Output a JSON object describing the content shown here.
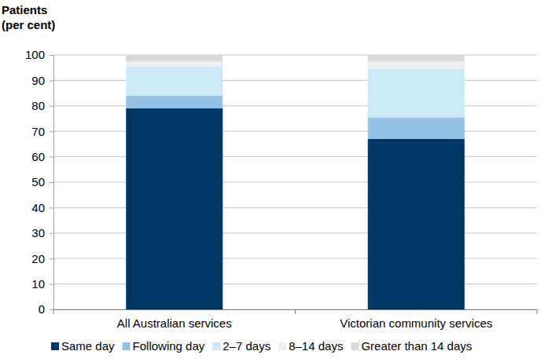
{
  "chart_data": {
    "type": "bar",
    "stacked": true,
    "grid": true,
    "legend": "bottom",
    "y_label": "Patients\n(per cent)",
    "categories": [
      "All Australian services",
      "Victorian community services"
    ],
    "series": [
      {
        "name": "Same day",
        "color": "#003865",
        "values": [
          79,
          67
        ]
      },
      {
        "name": "Following day",
        "color": "#95c3e6",
        "values": [
          5,
          8.5
        ]
      },
      {
        "name": "2–7 days",
        "color": "#cce9f9",
        "values": [
          11.5,
          19
        ]
      },
      {
        "name": "8–14 days",
        "color": "#eceef0",
        "values": [
          2,
          3
        ]
      },
      {
        "name": "Greater than 14 days",
        "color": "#d9d9d9",
        "values": [
          2.5,
          2.5
        ]
      }
    ],
    "ylim": [
      0,
      100
    ],
    "yticks": [
      0,
      10,
      20,
      30,
      40,
      50,
      60,
      70,
      80,
      90,
      100
    ]
  }
}
